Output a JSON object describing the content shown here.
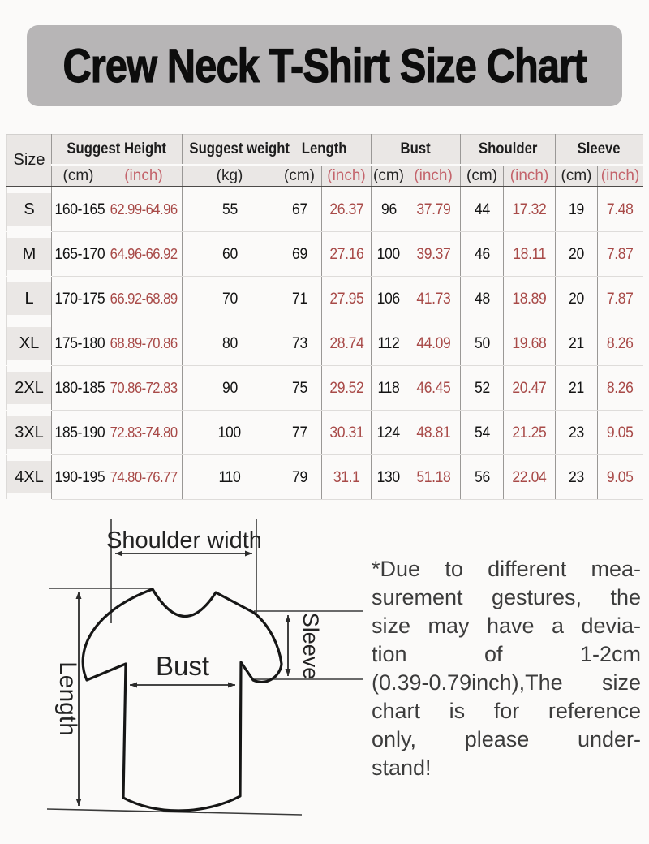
{
  "title": "Crew Neck T-Shirt Size Chart",
  "table": {
    "size_header": "Size",
    "groups": [
      {
        "label": "Suggest Height",
        "span": 2
      },
      {
        "label": "Suggest weight",
        "span": 1
      },
      {
        "label": "Length",
        "span": 2
      },
      {
        "label": "Bust",
        "span": 2
      },
      {
        "label": "Shoulder",
        "span": 2
      },
      {
        "label": "Sleeve",
        "span": 2
      }
    ],
    "sub_headers": [
      "(cm)",
      "(inch)",
      "(kg)",
      "(cm)",
      "(inch)",
      "(cm)",
      "(inch)",
      "(cm)",
      "(inch)",
      "(cm)",
      "(inch)"
    ],
    "rows": [
      {
        "size": "S",
        "values": [
          "160-165",
          "62.99-64.96",
          "55",
          "67",
          "26.37",
          "96",
          "37.79",
          "44",
          "17.32",
          "19",
          "7.48"
        ]
      },
      {
        "size": "M",
        "values": [
          "165-170",
          "64.96-66.92",
          "60",
          "69",
          "27.16",
          "100",
          "39.37",
          "46",
          "18.11",
          "20",
          "7.87"
        ]
      },
      {
        "size": "L",
        "values": [
          "170-175",
          "66.92-68.89",
          "70",
          "71",
          "27.95",
          "106",
          "41.73",
          "48",
          "18.89",
          "20",
          "7.87"
        ]
      },
      {
        "size": "XL",
        "values": [
          "175-180",
          "68.89-70.86",
          "80",
          "73",
          "28.74",
          "112",
          "44.09",
          "50",
          "19.68",
          "21",
          "8.26"
        ]
      },
      {
        "size": "2XL",
        "values": [
          "180-185",
          "70.86-72.83",
          "90",
          "75",
          "29.52",
          "118",
          "46.45",
          "52",
          "20.47",
          "21",
          "8.26"
        ]
      },
      {
        "size": "3XL",
        "values": [
          "185-190",
          "72.83-74.80",
          "100",
          "77",
          "30.31",
          "124",
          "48.81",
          "54",
          "21.25",
          "23",
          "9.05"
        ]
      },
      {
        "size": "4XL",
        "values": [
          "190-195",
          "74.80-76.77",
          "110",
          "79",
          "31.1",
          "130",
          "51.18",
          "56",
          "22.04",
          "23",
          "9.05"
        ]
      }
    ]
  },
  "diagram": {
    "shoulder_label": "Shoulder width",
    "length_label": "Length",
    "bust_label": "Bust",
    "sleeve_label": "Sleeve"
  },
  "note": {
    "lines": [
      "*Due to different mea-",
      "surement gestures, the",
      "size may have a devia-",
      "tion of 1-2cm",
      "(0.39-0.79inch),The size",
      "chart is for reference",
      "only, please under-",
      "stand!"
    ]
  },
  "colors": {
    "title_bg": "#b7b5b6",
    "header_bg": "#eae7e5",
    "inch_header_red": "#c4646c",
    "inch_value_red": "#a84a48"
  }
}
